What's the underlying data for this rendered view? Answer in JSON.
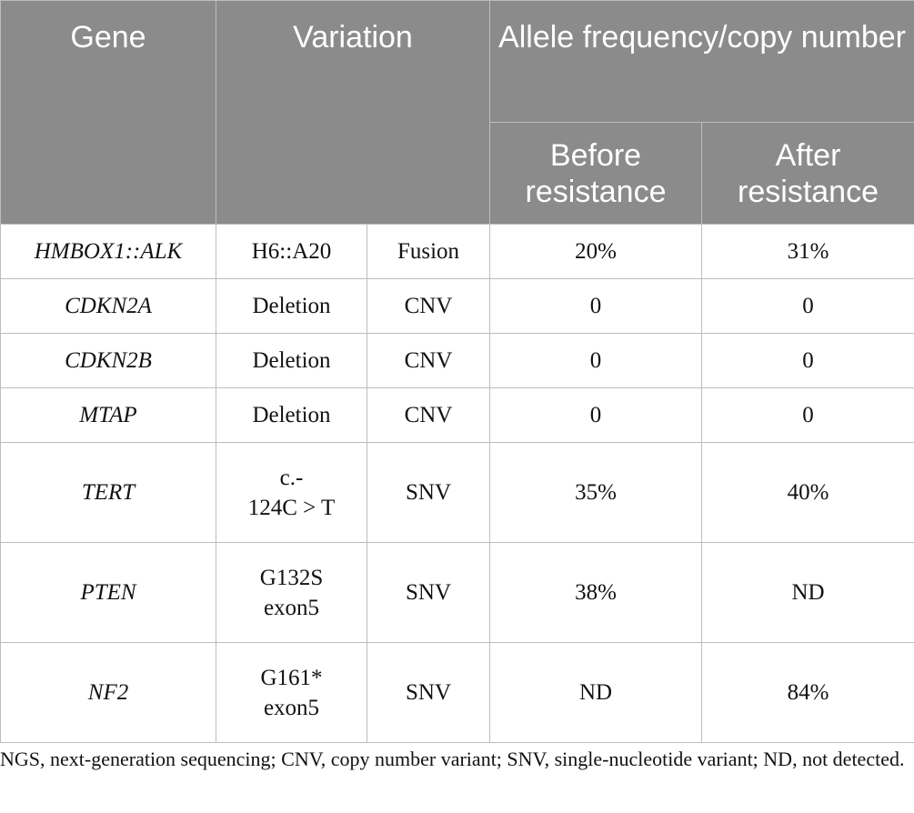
{
  "table": {
    "headers": {
      "gene": "Gene",
      "variation": "Variation",
      "allele_frequency": "Allele frequency/copy number",
      "before": "Before resistance",
      "after": "After resistance"
    },
    "rows": [
      {
        "gene": "HMBOX1::ALK",
        "variant": "H6::A20",
        "type": "Fusion",
        "before": "20%",
        "after": "31%"
      },
      {
        "gene": "CDKN2A",
        "variant": "Deletion",
        "type": "CNV",
        "before": "0",
        "after": "0"
      },
      {
        "gene": "CDKN2B",
        "variant": "Deletion",
        "type": "CNV",
        "before": "0",
        "after": "0"
      },
      {
        "gene": "MTAP",
        "variant": "Deletion",
        "type": "CNV",
        "before": "0",
        "after": "0"
      },
      {
        "gene": "TERT",
        "variant": "c.-\n124C > T",
        "type": "SNV",
        "before": "35%",
        "after": "40%"
      },
      {
        "gene": "PTEN",
        "variant": "G132S\nexon5",
        "type": "SNV",
        "before": "38%",
        "after": "ND"
      },
      {
        "gene": "NF2",
        "variant": "G161*\nexon5",
        "type": "SNV",
        "before": "ND",
        "after": "84%"
      }
    ]
  },
  "caption": "NGS, next-generation sequencing; CNV, copy number variant; SNV, single-nucleotide variant; ND, not detected."
}
